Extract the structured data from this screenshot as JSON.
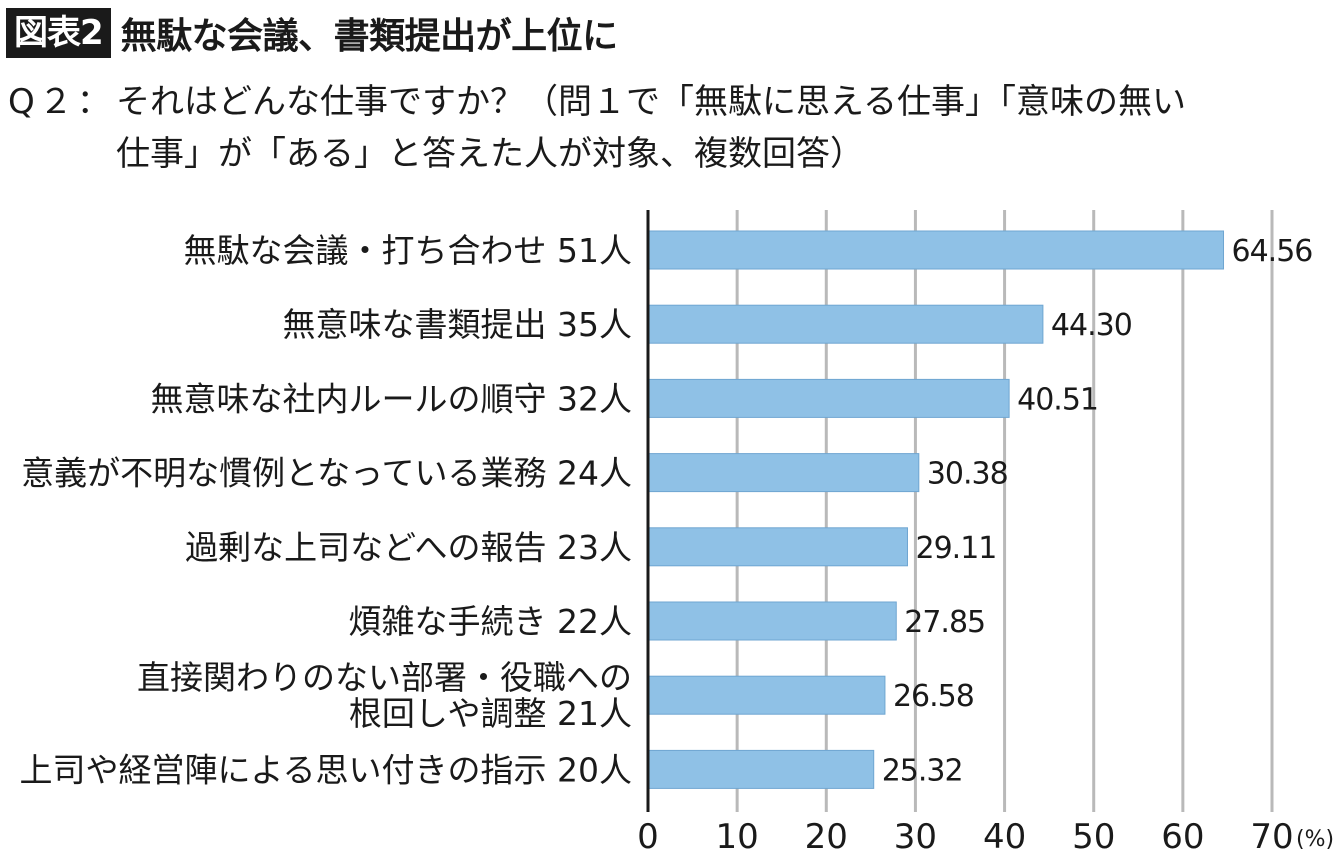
{
  "header": {
    "badge": "図表2",
    "title": "無駄な会議、書類提出が上位に"
  },
  "question": {
    "label": "Q２：",
    "line1": "それはどんな仕事ですか？（問１で「無駄に思える仕事」「意味の無い",
    "line2": "仕事」が「ある」と答えた人が対象、複数回答）"
  },
  "chart_data": {
    "type": "bar",
    "orientation": "horizontal",
    "categories": [
      [
        "無駄な会議・打ち合わせ 51人"
      ],
      [
        "無意味な書類提出 35人"
      ],
      [
        "無意味な社内ルールの順守 32人"
      ],
      [
        "意義が不明な慣例となっている業務 24人"
      ],
      [
        "過剰な上司などへの報告 23人"
      ],
      [
        "煩雑な手続き 22人"
      ],
      [
        "直接関わりのない部署・役職への",
        "根回しや調整 21人"
      ],
      [
        "上司や経営陣による思い付きの指示 20人"
      ]
    ],
    "values": [
      64.56,
      44.3,
      40.51,
      30.38,
      29.11,
      27.85,
      26.58,
      25.32
    ],
    "value_labels": [
      "64.56",
      "44.30",
      "40.51",
      "30.38",
      "29.11",
      "27.85",
      "26.58",
      "25.32"
    ],
    "xlim": [
      0,
      70
    ],
    "xticks": [
      "0",
      "10",
      "20",
      "30",
      "40",
      "50",
      "60",
      "70"
    ],
    "xunit": "(%)",
    "grid": true,
    "colors": {
      "bar": "#8fc1e6",
      "bar_edge": "#6fa6d1",
      "grid": "#b9b9b9",
      "axis": "#1a1a1a",
      "text": "#1a1a1a"
    }
  }
}
